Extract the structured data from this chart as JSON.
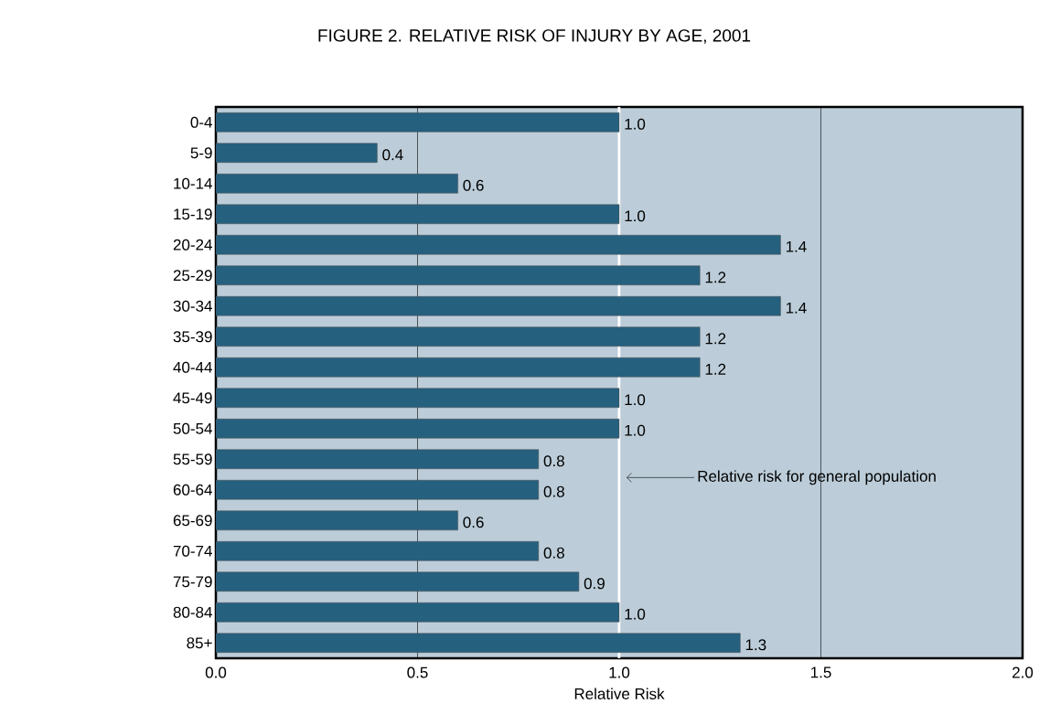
{
  "chart_data": {
    "type": "bar",
    "orientation": "horizontal",
    "title": "FIGURE 2.  RELATIVE RISK OF INJURY BY AGE, 2001",
    "xlabel": "Relative Risk",
    "categories": [
      "0-4",
      "5-9",
      "10-14",
      "15-19",
      "20-24",
      "25-29",
      "30-34",
      "35-39",
      "40-44",
      "45-49",
      "50-54",
      "55-59",
      "60-64",
      "65-69",
      "70-74",
      "75-79",
      "80-84",
      "85+"
    ],
    "values": [
      1.0,
      0.4,
      0.6,
      1.0,
      1.4,
      1.2,
      1.4,
      1.2,
      1.2,
      1.0,
      1.0,
      0.8,
      0.8,
      0.6,
      0.8,
      0.9,
      1.0,
      1.3
    ],
    "value_labels": [
      "1.0",
      "0.4",
      "0.6",
      "1.0",
      "1.4",
      "1.2",
      "1.4",
      "1.2",
      "1.2",
      "1.0",
      "1.0",
      "0.8",
      "0.8",
      "0.6",
      "0.8",
      "0.9",
      "1.0",
      "1.3"
    ],
    "color": "#26607f",
    "grid": "x",
    "xlim": [
      0,
      2
    ],
    "xticks": [
      {
        "value": 0,
        "label": "0.0"
      },
      {
        "value": 0.5,
        "label": "0.5"
      },
      {
        "value": 1,
        "label": "1.0"
      },
      {
        "value": 1.5,
        "label": "1.5"
      },
      {
        "value": 2,
        "label": "2.0"
      }
    ],
    "ref_lines": [
      {
        "axis": "x",
        "value": 1,
        "label": "Relative risk for general population",
        "color": "#ffffff"
      }
    ]
  }
}
